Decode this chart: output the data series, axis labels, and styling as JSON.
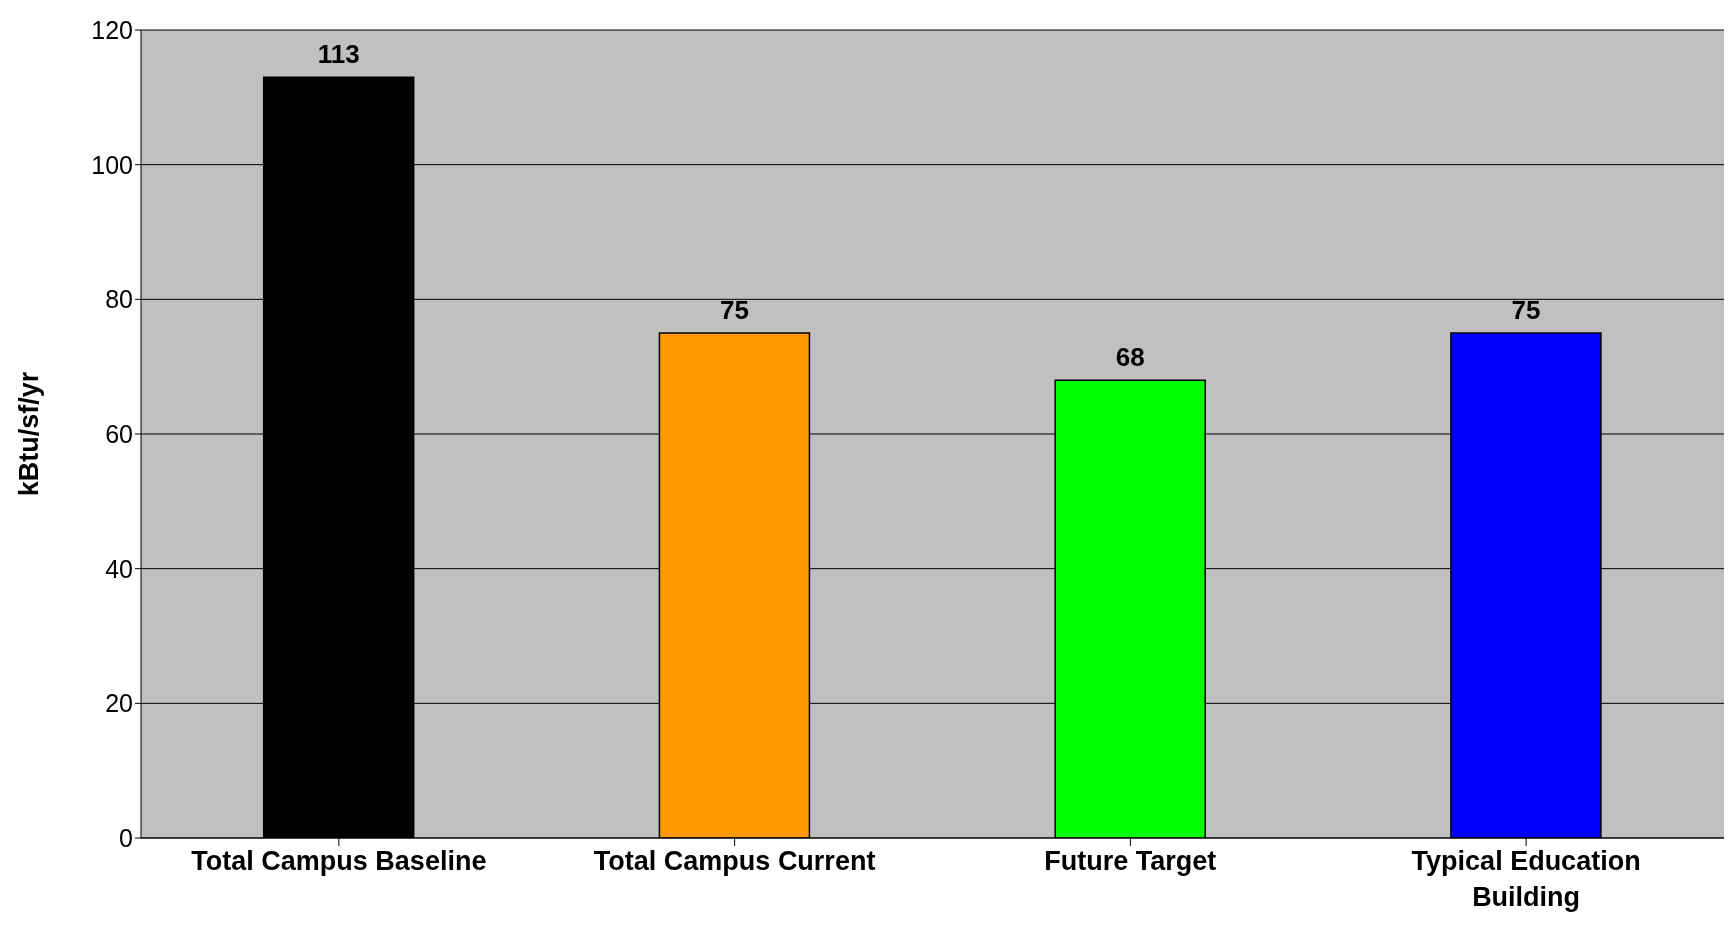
{
  "chart_data": {
    "type": "bar",
    "ylabel": "kBtu/sf/yr",
    "categories": [
      "Total Campus Baseline",
      "Total Campus Current",
      "Future Target",
      "Typical Education Building"
    ],
    "values": [
      113,
      75,
      68,
      75
    ],
    "colors": [
      "#000000",
      "#ff9900",
      "#00ff00",
      "#0000ff"
    ],
    "ylim": [
      0,
      120
    ],
    "yticks": [
      0,
      20,
      40,
      60,
      80,
      100,
      120
    ],
    "grid": "y",
    "data_labels": true
  }
}
